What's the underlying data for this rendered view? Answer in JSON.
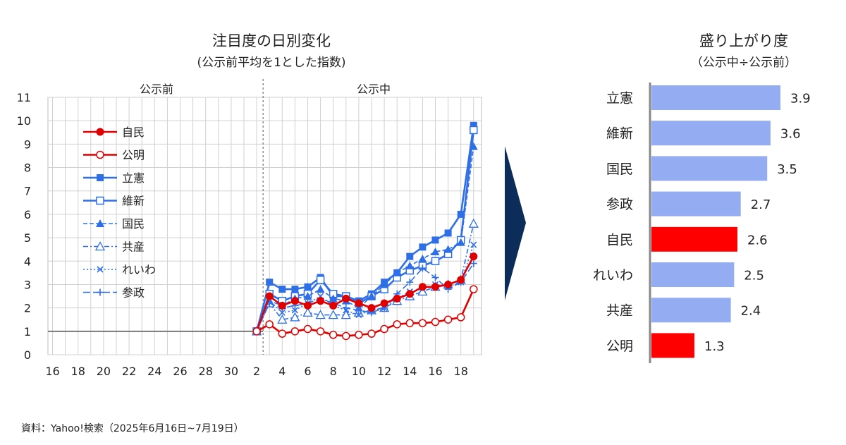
{
  "colors": {
    "red": "#e00000",
    "blue": "#2e6fe8",
    "bar_blue": "#94acf2",
    "bar_red": "#ff0000",
    "arrow": "#0c2c5a",
    "grid": "#d0d0d0"
  },
  "footer": "資料：Yahoo!検索（2025年6月16日~7月19日）",
  "chart_data": [
    {
      "type": "line",
      "title": "注目度の日別変化",
      "subtitle": "(公示前平均を1とした指数)",
      "period_labels": {
        "before": "公示前",
        "during": "公示中"
      },
      "ylim": [
        0,
        11
      ],
      "yticks": [
        0,
        1,
        2,
        3,
        4,
        5,
        6,
        7,
        8,
        9,
        10,
        11
      ],
      "xticks": [
        "16",
        "18",
        "20",
        "22",
        "24",
        "26",
        "28",
        "30",
        "2",
        "4",
        "6",
        "8",
        "10",
        "12",
        "14",
        "16",
        "18"
      ],
      "grid": true,
      "legend_position": "top-left",
      "baseline": {
        "name": "公示前平均",
        "value": 1
      },
      "x": [
        "7/2",
        "7/3",
        "7/4",
        "7/5",
        "7/6",
        "7/7",
        "7/8",
        "7/9",
        "7/10",
        "7/11",
        "7/12",
        "7/13",
        "7/14",
        "7/15",
        "7/16",
        "7/17",
        "7/18",
        "7/19"
      ],
      "series": [
        {
          "name": "自民",
          "color": "red",
          "dash": "solid",
          "marker": "circle-filled",
          "values": [
            1,
            2.5,
            2.1,
            2.3,
            2.1,
            2.3,
            2.1,
            2.4,
            2.2,
            2.0,
            2.2,
            2.4,
            2.6,
            2.9,
            2.9,
            3.0,
            3.2,
            4.2
          ]
        },
        {
          "name": "公明",
          "color": "red",
          "dash": "solid",
          "marker": "circle-open",
          "values": [
            1,
            1.3,
            0.9,
            1.0,
            1.1,
            1.0,
            0.85,
            0.8,
            0.85,
            0.9,
            1.1,
            1.3,
            1.35,
            1.35,
            1.4,
            1.5,
            1.6,
            2.8
          ]
        },
        {
          "name": "立憲",
          "color": "blue",
          "dash": "solid",
          "marker": "square-filled",
          "values": [
            1,
            3.1,
            2.8,
            2.8,
            2.9,
            3.3,
            2.5,
            2.5,
            2.3,
            2.6,
            3.1,
            3.5,
            4.2,
            4.6,
            4.9,
            5.2,
            6.0,
            9.8
          ]
        },
        {
          "name": "維新",
          "color": "blue",
          "dash": "solid",
          "marker": "square-open",
          "values": [
            1,
            2.6,
            2.3,
            2.5,
            2.6,
            3.2,
            2.6,
            2.5,
            2.2,
            2.5,
            2.8,
            3.3,
            3.6,
            3.8,
            4.0,
            4.3,
            4.9,
            9.6
          ]
        },
        {
          "name": "国民",
          "color": "blue",
          "dash": "dashed",
          "marker": "triangle-filled",
          "values": [
            1,
            2.3,
            2.1,
            2.4,
            2.5,
            2.8,
            2.4,
            2.3,
            2.0,
            2.5,
            3.0,
            3.5,
            3.8,
            4.1,
            4.4,
            4.5,
            4.8,
            8.9
          ]
        },
        {
          "name": "共産",
          "color": "blue",
          "dash": "dashdot",
          "marker": "triangle-open",
          "values": [
            1,
            2.2,
            1.5,
            1.6,
            1.8,
            1.7,
            1.7,
            1.7,
            1.8,
            1.9,
            2.0,
            2.3,
            2.5,
            2.7,
            2.9,
            3.0,
            3.2,
            5.6
          ]
        },
        {
          "name": "れいわ",
          "color": "blue",
          "dash": "dotted",
          "marker": "x",
          "values": [
            1,
            2.3,
            1.8,
            1.9,
            2.2,
            2.5,
            2.1,
            1.9,
            1.7,
            1.9,
            2.0,
            2.4,
            2.7,
            2.8,
            3.0,
            2.9,
            3.1,
            4.7
          ]
        },
        {
          "name": "参政",
          "color": "blue",
          "dash": "longdash",
          "marker": "plus",
          "values": [
            1,
            2.2,
            2.0,
            2.1,
            2.2,
            2.4,
            2.2,
            2.0,
            1.9,
            1.8,
            2.0,
            2.6,
            3.1,
            3.7,
            3.3,
            2.8,
            3.1,
            3.9
          ]
        }
      ]
    },
    {
      "type": "bar",
      "orientation": "horizontal",
      "title": "盛り上がり度",
      "subtitle": "（公示中÷公示前）",
      "categories": [
        "立憲",
        "維新",
        "国民",
        "参政",
        "自民",
        "れいわ",
        "共産",
        "公明"
      ],
      "values": [
        3.9,
        3.6,
        3.5,
        2.7,
        2.6,
        2.5,
        2.4,
        1.3
      ],
      "value_labels": [
        "3.9",
        "3.6",
        "3.5",
        "2.7",
        "2.6",
        "2.5",
        "2.4",
        "1.3"
      ],
      "bar_colors": [
        "bar_blue",
        "bar_blue",
        "bar_blue",
        "bar_blue",
        "bar_red",
        "bar_blue",
        "bar_blue",
        "bar_red"
      ],
      "xlim": [
        0,
        4.5
      ]
    }
  ]
}
